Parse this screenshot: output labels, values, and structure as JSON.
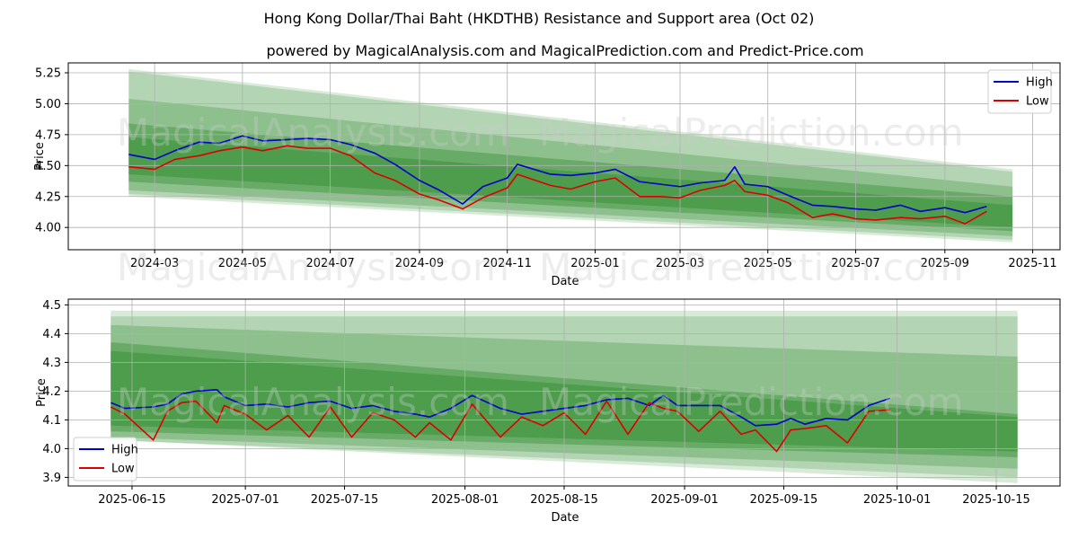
{
  "title": "Hong Kong Dollar/Thai Baht (HKDTHB) Resistance and Support area (Oct 02)",
  "subtitle": "powered by MagicalAnalysis.com and MagicalPrediction.com and Predict-Price.com",
  "watermarks": [
    "MagicalAnalysis.com",
    "MagicalPrediction.com"
  ],
  "colors": {
    "high": "#0000cc",
    "low": "#dd0000",
    "band": "#2e8b2e"
  },
  "chart_data": [
    {
      "type": "line",
      "xlabel": "Date",
      "ylabel": "Price",
      "xlim": [
        "2024-01-01",
        "2025-11-20"
      ],
      "ylim": [
        3.82,
        5.33
      ],
      "xticks": [
        {
          "date": "2024-03-01",
          "label": "2024-03"
        },
        {
          "date": "2024-05-01",
          "label": "2024-05"
        },
        {
          "date": "2024-07-01",
          "label": "2024-07"
        },
        {
          "date": "2024-09-01",
          "label": "2024-09"
        },
        {
          "date": "2024-11-01",
          "label": "2024-11"
        },
        {
          "date": "2025-01-01",
          "label": "2025-01"
        },
        {
          "date": "2025-03-01",
          "label": "2025-03"
        },
        {
          "date": "2025-05-01",
          "label": "2025-05"
        },
        {
          "date": "2025-07-01",
          "label": "2025-07"
        },
        {
          "date": "2025-09-01",
          "label": "2025-09"
        },
        {
          "date": "2025-11-01",
          "label": "2025-11"
        }
      ],
      "yticks": [
        4.0,
        4.25,
        4.5,
        4.75,
        5.0,
        5.25
      ],
      "ytick_labels": [
        "4.00",
        "4.25",
        "4.50",
        "4.75",
        "5.00",
        "5.25"
      ],
      "legend": "top-right",
      "bands": {
        "x_start": "2024-02-12",
        "x_end": "2025-10-18",
        "layers": [
          {
            "start": [
              4.25,
              5.28
            ],
            "end": [
              3.88,
              4.47
            ],
            "opacity": 0.18
          },
          {
            "start": [
              4.27,
              5.26
            ],
            "end": [
              3.9,
              4.45
            ],
            "opacity": 0.22
          },
          {
            "start": [
              4.3,
              5.04
            ],
            "end": [
              3.93,
              4.33
            ],
            "opacity": 0.28
          },
          {
            "start": [
              4.37,
              4.84
            ],
            "end": [
              3.97,
              4.25
            ],
            "opacity": 0.4
          },
          {
            "start": [
              4.43,
              4.73
            ],
            "end": [
              4.0,
              4.18
            ],
            "opacity": 0.45
          }
        ]
      },
      "series": [
        {
          "name": "High",
          "points": [
            [
              "2024-02-12",
              4.59
            ],
            [
              "2024-03-01",
              4.55
            ],
            [
              "2024-03-15",
              4.62
            ],
            [
              "2024-04-01",
              4.69
            ],
            [
              "2024-04-15",
              4.68
            ],
            [
              "2024-05-01",
              4.74
            ],
            [
              "2024-05-15",
              4.7
            ],
            [
              "2024-06-01",
              4.71
            ],
            [
              "2024-06-15",
              4.72
            ],
            [
              "2024-07-01",
              4.71
            ],
            [
              "2024-07-15",
              4.67
            ],
            [
              "2024-08-01",
              4.6
            ],
            [
              "2024-08-15",
              4.51
            ],
            [
              "2024-09-01",
              4.38
            ],
            [
              "2024-09-15",
              4.3
            ],
            [
              "2024-10-01",
              4.19
            ],
            [
              "2024-10-15",
              4.33
            ],
            [
              "2024-11-01",
              4.4
            ],
            [
              "2024-11-08",
              4.51
            ],
            [
              "2024-12-01",
              4.43
            ],
            [
              "2024-12-15",
              4.42
            ],
            [
              "2025-01-01",
              4.44
            ],
            [
              "2025-01-15",
              4.47
            ],
            [
              "2025-02-01",
              4.37
            ],
            [
              "2025-02-15",
              4.35
            ],
            [
              "2025-03-01",
              4.33
            ],
            [
              "2025-03-15",
              4.36
            ],
            [
              "2025-04-01",
              4.38
            ],
            [
              "2025-04-08",
              4.49
            ],
            [
              "2025-04-15",
              4.35
            ],
            [
              "2025-05-01",
              4.33
            ],
            [
              "2025-05-15",
              4.26
            ],
            [
              "2025-06-01",
              4.18
            ],
            [
              "2025-06-15",
              4.17
            ],
            [
              "2025-07-01",
              4.15
            ],
            [
              "2025-07-15",
              4.14
            ],
            [
              "2025-08-01",
              4.18
            ],
            [
              "2025-08-15",
              4.13
            ],
            [
              "2025-09-01",
              4.16
            ],
            [
              "2025-09-15",
              4.12
            ],
            [
              "2025-09-30",
              4.17
            ]
          ]
        },
        {
          "name": "Low",
          "points": [
            [
              "2024-02-12",
              4.49
            ],
            [
              "2024-03-01",
              4.47
            ],
            [
              "2024-03-15",
              4.55
            ],
            [
              "2024-04-01",
              4.58
            ],
            [
              "2024-04-15",
              4.62
            ],
            [
              "2024-05-01",
              4.65
            ],
            [
              "2024-05-15",
              4.62
            ],
            [
              "2024-06-01",
              4.66
            ],
            [
              "2024-06-15",
              4.64
            ],
            [
              "2024-07-01",
              4.64
            ],
            [
              "2024-07-15",
              4.58
            ],
            [
              "2024-08-01",
              4.44
            ],
            [
              "2024-08-15",
              4.38
            ],
            [
              "2024-09-01",
              4.27
            ],
            [
              "2024-09-15",
              4.22
            ],
            [
              "2024-10-01",
              4.15
            ],
            [
              "2024-10-15",
              4.24
            ],
            [
              "2024-11-01",
              4.32
            ],
            [
              "2024-11-08",
              4.43
            ],
            [
              "2024-12-01",
              4.34
            ],
            [
              "2024-12-15",
              4.31
            ],
            [
              "2025-01-01",
              4.37
            ],
            [
              "2025-01-15",
              4.4
            ],
            [
              "2025-02-01",
              4.25
            ],
            [
              "2025-02-15",
              4.25
            ],
            [
              "2025-03-01",
              4.24
            ],
            [
              "2025-03-15",
              4.3
            ],
            [
              "2025-04-01",
              4.34
            ],
            [
              "2025-04-08",
              4.38
            ],
            [
              "2025-04-15",
              4.29
            ],
            [
              "2025-05-01",
              4.26
            ],
            [
              "2025-05-15",
              4.2
            ],
            [
              "2025-06-01",
              4.08
            ],
            [
              "2025-06-15",
              4.11
            ],
            [
              "2025-07-01",
              4.07
            ],
            [
              "2025-07-15",
              4.06
            ],
            [
              "2025-08-01",
              4.08
            ],
            [
              "2025-08-15",
              4.07
            ],
            [
              "2025-09-01",
              4.09
            ],
            [
              "2025-09-15",
              4.03
            ],
            [
              "2025-09-30",
              4.13
            ]
          ]
        }
      ]
    },
    {
      "type": "line",
      "xlabel": "Date",
      "ylabel": "Price",
      "xlim": [
        "2025-06-06",
        "2025-10-24"
      ],
      "ylim": [
        3.87,
        4.52
      ],
      "xticks": [
        {
          "date": "2025-06-15",
          "label": "2025-06-15"
        },
        {
          "date": "2025-07-01",
          "label": "2025-07-01"
        },
        {
          "date": "2025-07-15",
          "label": "2025-07-15"
        },
        {
          "date": "2025-08-01",
          "label": "2025-08-01"
        },
        {
          "date": "2025-08-15",
          "label": "2025-08-15"
        },
        {
          "date": "2025-09-01",
          "label": "2025-09-01"
        },
        {
          "date": "2025-09-15",
          "label": "2025-09-15"
        },
        {
          "date": "2025-10-01",
          "label": "2025-10-01"
        },
        {
          "date": "2025-10-15",
          "label": "2025-10-15"
        }
      ],
      "yticks": [
        3.9,
        4.0,
        4.1,
        4.2,
        4.3,
        4.4,
        4.5
      ],
      "ytick_labels": [
        "3.9",
        "4.0",
        "4.1",
        "4.2",
        "4.3",
        "4.4",
        "4.5"
      ],
      "legend": "bottom-left",
      "bands": {
        "x_start": "2025-06-12",
        "x_end": "2025-10-18",
        "layers": [
          {
            "start": [
              4.03,
              4.48
            ],
            "end": [
              3.88,
              4.48
            ],
            "opacity": 0.18
          },
          {
            "start": [
              4.03,
              4.46
            ],
            "end": [
              3.9,
              4.46
            ],
            "opacity": 0.22
          },
          {
            "start": [
              4.04,
              4.43
            ],
            "end": [
              3.93,
              4.32
            ],
            "opacity": 0.28
          },
          {
            "start": [
              4.06,
              4.37
            ],
            "end": [
              3.97,
              4.12
            ],
            "opacity": 0.4
          },
          {
            "start": [
              4.08,
              4.34
            ],
            "end": [
              3.99,
              4.11
            ],
            "opacity": 0.45
          }
        ]
      },
      "series": [
        {
          "name": "High",
          "points": [
            [
              "2025-06-12",
              4.16
            ],
            [
              "2025-06-14",
              4.14
            ],
            [
              "2025-06-18",
              4.145
            ],
            [
              "2025-06-20",
              4.155
            ],
            [
              "2025-06-22",
              4.19
            ],
            [
              "2025-06-24",
              4.2
            ],
            [
              "2025-06-27",
              4.205
            ],
            [
              "2025-06-28",
              4.18
            ],
            [
              "2025-07-01",
              4.15
            ],
            [
              "2025-07-04",
              4.155
            ],
            [
              "2025-07-07",
              4.145
            ],
            [
              "2025-07-10",
              4.16
            ],
            [
              "2025-07-13",
              4.165
            ],
            [
              "2025-07-16",
              4.14
            ],
            [
              "2025-07-19",
              4.15
            ],
            [
              "2025-07-22",
              4.13
            ],
            [
              "2025-07-25",
              4.12
            ],
            [
              "2025-07-27",
              4.11
            ],
            [
              "2025-07-30",
              4.14
            ],
            [
              "2025-08-02",
              4.185
            ],
            [
              "2025-08-06",
              4.14
            ],
            [
              "2025-08-09",
              4.12
            ],
            [
              "2025-08-12",
              4.13
            ],
            [
              "2025-08-15",
              4.14
            ],
            [
              "2025-08-18",
              4.15
            ],
            [
              "2025-08-21",
              4.17
            ],
            [
              "2025-08-24",
              4.175
            ],
            [
              "2025-08-27",
              4.15
            ],
            [
              "2025-08-29",
              4.185
            ],
            [
              "2025-08-31",
              4.15
            ],
            [
              "2025-09-03",
              4.15
            ],
            [
              "2025-09-06",
              4.15
            ],
            [
              "2025-09-09",
              4.11
            ],
            [
              "2025-09-11",
              4.08
            ],
            [
              "2025-09-14",
              4.085
            ],
            [
              "2025-09-16",
              4.105
            ],
            [
              "2025-09-18",
              4.085
            ],
            [
              "2025-09-21",
              4.105
            ],
            [
              "2025-09-24",
              4.1
            ],
            [
              "2025-09-27",
              4.15
            ],
            [
              "2025-09-30",
              4.175
            ]
          ]
        },
        {
          "name": "Low",
          "points": [
            [
              "2025-06-12",
              4.145
            ],
            [
              "2025-06-14",
              4.12
            ],
            [
              "2025-06-18",
              4.03
            ],
            [
              "2025-06-20",
              4.13
            ],
            [
              "2025-06-22",
              4.16
            ],
            [
              "2025-06-24",
              4.165
            ],
            [
              "2025-06-27",
              4.09
            ],
            [
              "2025-06-28",
              4.15
            ],
            [
              "2025-07-01",
              4.12
            ],
            [
              "2025-07-04",
              4.065
            ],
            [
              "2025-07-07",
              4.115
            ],
            [
              "2025-07-10",
              4.04
            ],
            [
              "2025-07-13",
              4.145
            ],
            [
              "2025-07-16",
              4.04
            ],
            [
              "2025-07-19",
              4.125
            ],
            [
              "2025-07-22",
              4.1
            ],
            [
              "2025-07-25",
              4.04
            ],
            [
              "2025-07-27",
              4.09
            ],
            [
              "2025-07-30",
              4.03
            ],
            [
              "2025-08-02",
              4.155
            ],
            [
              "2025-08-06",
              4.04
            ],
            [
              "2025-08-09",
              4.11
            ],
            [
              "2025-08-12",
              4.08
            ],
            [
              "2025-08-15",
              4.125
            ],
            [
              "2025-08-18",
              4.05
            ],
            [
              "2025-08-21",
              4.165
            ],
            [
              "2025-08-24",
              4.05
            ],
            [
              "2025-08-27",
              4.16
            ],
            [
              "2025-08-29",
              4.14
            ],
            [
              "2025-08-31",
              4.13
            ],
            [
              "2025-09-03",
              4.06
            ],
            [
              "2025-09-06",
              4.13
            ],
            [
              "2025-09-09",
              4.05
            ],
            [
              "2025-09-11",
              4.065
            ],
            [
              "2025-09-14",
              3.99
            ],
            [
              "2025-09-16",
              4.065
            ],
            [
              "2025-09-18",
              4.07
            ],
            [
              "2025-09-21",
              4.08
            ],
            [
              "2025-09-24",
              4.02
            ],
            [
              "2025-09-27",
              4.13
            ],
            [
              "2025-09-30",
              4.135
            ]
          ]
        }
      ]
    }
  ]
}
